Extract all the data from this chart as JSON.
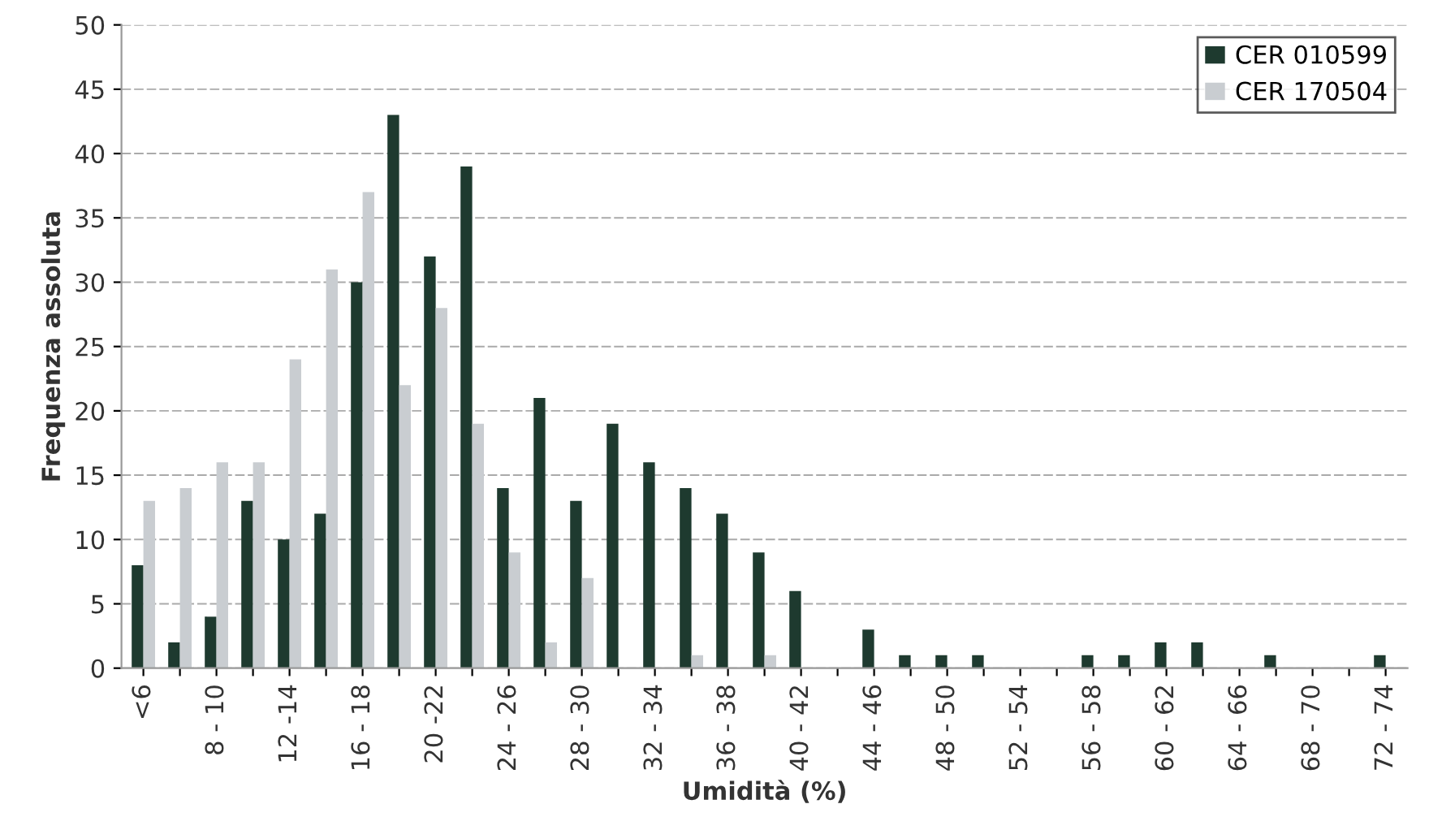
{
  "chart_data": {
    "type": "bar",
    "xlabel": "Umidità (%)",
    "ylabel": "Frequenza assoluta",
    "categories": [
      "<6",
      null,
      "8 - 10",
      null,
      "12 -14",
      null,
      "16 - 18",
      null,
      "20 -22",
      null,
      "24 - 26",
      null,
      "28 - 30",
      null,
      "32 - 34",
      null,
      "36 - 38",
      null,
      "40 - 42",
      null,
      "44 - 46",
      null,
      "48 - 50",
      null,
      "52 - 54",
      null,
      "56 - 58",
      null,
      "60 - 62",
      null,
      "64 - 66",
      null,
      "68 - 70",
      null,
      "72 - 74"
    ],
    "series": [
      {
        "name": "CER 010599",
        "color": "#1e3a2f",
        "values": [
          8,
          2,
          4,
          13,
          10,
          12,
          30,
          43,
          32,
          39,
          14,
          21,
          13,
          19,
          16,
          14,
          12,
          9,
          6,
          0,
          3,
          1,
          1,
          1,
          0,
          0,
          1,
          1,
          2,
          2,
          0,
          1,
          0,
          0,
          1
        ]
      },
      {
        "name": "CER 170504",
        "color": "#c9cdd1",
        "values": [
          13,
          14,
          16,
          16,
          24,
          31,
          37,
          22,
          28,
          19,
          9,
          2,
          7,
          0,
          0,
          1,
          0,
          1,
          0,
          0,
          0,
          0,
          0,
          0,
          0,
          0,
          0,
          0,
          0,
          0,
          0,
          0,
          0,
          0,
          0
        ]
      }
    ],
    "ylim": [
      0,
      50
    ],
    "yticks": [
      0,
      5,
      10,
      15,
      20,
      25,
      30,
      35,
      40,
      45,
      50
    ],
    "grid": "y",
    "legend": "top right"
  }
}
